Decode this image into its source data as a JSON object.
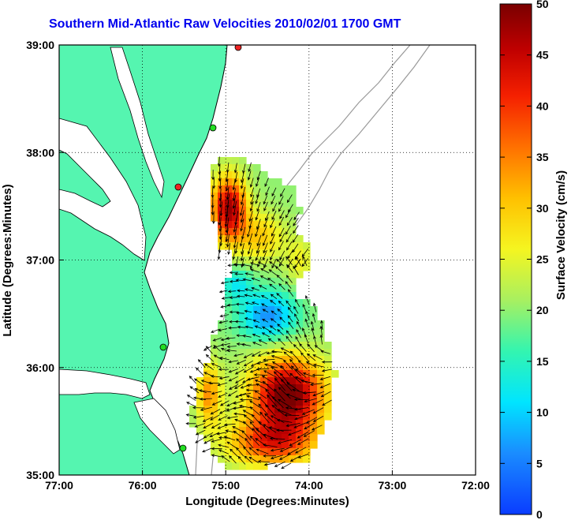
{
  "title": "Southern Mid-Atlantic Raw Velocities 2010/02/01 1700 GMT",
  "xlabel": "Longitude (Degrees:Minutes)",
  "ylabel": "Latitude (Degrees:Minutes)",
  "colorbar_label": "Surface Velocity (cm/s)",
  "x_ticks": [
    "77:00",
    "76:00",
    "75:00",
    "74:00",
    "73:00",
    "72:00"
  ],
  "y_ticks": [
    "39:00",
    "38:00",
    "37:00",
    "36:00",
    "35:00"
  ],
  "colorbar_ticks": [
    "0",
    "5",
    "10",
    "15",
    "20",
    "25",
    "30",
    "35",
    "40",
    "45",
    "50"
  ],
  "colors": {
    "land": "#55f5b0",
    "title": "#0000ee",
    "station_green": "#22dd22",
    "station_red": "#ee2222"
  },
  "extent": {
    "lon_min": -77,
    "lon_max": -72,
    "lat_min": 35,
    "lat_max": 39
  },
  "colorbar_range": [
    0,
    50
  ]
}
